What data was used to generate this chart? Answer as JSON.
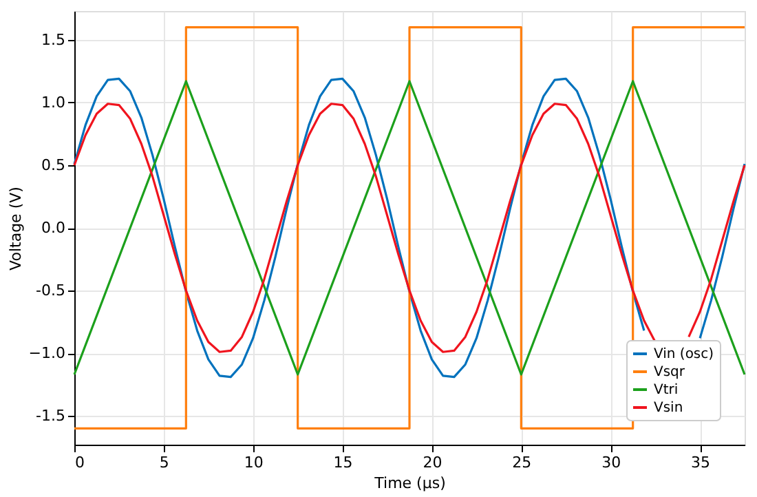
{
  "chart_data": {
    "type": "line",
    "xlabel": "Time (μs)",
    "ylabel": "Voltage (V)",
    "xlim": [
      0,
      37.5
    ],
    "ylim": [
      -1.73,
      1.73
    ],
    "xticks": [
      0,
      5,
      10,
      15,
      20,
      25,
      30,
      35
    ],
    "yticks": [
      -1.5,
      {
        "value": -1,
        "label": "−1.0"
      },
      -0.5,
      {
        "value": 0,
        "label": "0.0"
      },
      0.5,
      {
        "value": 1,
        "label": "1.0"
      },
      1.5
    ],
    "grid": true,
    "legend": "bottom right",
    "x": [
      0,
      0.625,
      1.25,
      1.875,
      2.5,
      3.125,
      3.75,
      4.375,
      5,
      5.625,
      6.25,
      6.875,
      7.5,
      8.125,
      8.75,
      9.375,
      10,
      10.625,
      11.25,
      11.875,
      12.5,
      13.125,
      13.75,
      14.375,
      15,
      15.625,
      16.25,
      16.875,
      17.5,
      18.125,
      18.75,
      19.375,
      20,
      20.625,
      21.25,
      21.875,
      22.5,
      23.125,
      23.75,
      24.375,
      25,
      25.625,
      26.25,
      26.875,
      27.5,
      28.125,
      28.75,
      29.375,
      30,
      30.625,
      31.25,
      31.875,
      32.5,
      33.125,
      33.75,
      34.375,
      35,
      35.625,
      36.25,
      36.875,
      37.5
    ],
    "series": [
      {
        "name": "Vin (osc)",
        "color": "#0072bd",
        "values": [
          0.51,
          0.82,
          1.05,
          1.18,
          1.19,
          1.09,
          0.88,
          0.58,
          0.23,
          -0.15,
          -0.51,
          -0.82,
          -1.05,
          -1.18,
          -1.19,
          -1.09,
          -0.88,
          -0.58,
          -0.23,
          0.15,
          0.51,
          0.82,
          1.05,
          1.18,
          1.19,
          1.09,
          0.88,
          0.58,
          0.23,
          -0.15,
          -0.51,
          -0.82,
          -1.05,
          -1.18,
          -1.19,
          -1.09,
          -0.88,
          -0.58,
          -0.23,
          0.15,
          0.51,
          0.82,
          1.05,
          1.18,
          1.19,
          1.09,
          0.88,
          0.58,
          0.23,
          -0.15,
          -0.51,
          -0.82,
          null,
          null,
          null,
          null,
          -0.88,
          -0.58,
          -0.23,
          0.15,
          0.51
        ]
      },
      {
        "name": "Vsqr",
        "type": "step",
        "color": "#ff7f0e",
        "x": [
          0,
          6.25,
          12.5,
          18.75,
          25,
          31.25,
          37.5
        ],
        "values": [
          -1.6,
          1.6,
          -1.6,
          1.6,
          -1.6,
          1.6,
          1.6
        ]
      },
      {
        "name": "Vtri",
        "color": "#1ca01c",
        "x": [
          0,
          6.25,
          12.5,
          18.75,
          25,
          31.25,
          37.5
        ],
        "values": [
          -1.17,
          1.17,
          -1.17,
          1.17,
          -1.17,
          1.17,
          -1.17
        ]
      },
      {
        "name": "Vsin",
        "color": "#f0141e",
        "values": [
          0.5,
          0.74,
          0.91,
          0.99,
          0.98,
          0.87,
          0.67,
          0.41,
          0.1,
          -0.21,
          -0.5,
          -0.74,
          -0.91,
          -0.99,
          -0.98,
          -0.87,
          -0.67,
          -0.41,
          -0.1,
          0.21,
          0.5,
          0.74,
          0.91,
          0.99,
          0.98,
          0.87,
          0.67,
          0.41,
          0.1,
          -0.21,
          -0.5,
          -0.74,
          -0.91,
          -0.99,
          -0.98,
          -0.87,
          -0.67,
          -0.41,
          -0.1,
          0.21,
          0.5,
          0.74,
          0.91,
          0.99,
          0.98,
          0.87,
          0.67,
          0.41,
          0.1,
          -0.21,
          -0.5,
          -0.74,
          -0.91,
          null,
          null,
          -0.87,
          -0.67,
          -0.41,
          -0.1,
          0.21,
          0.5
        ]
      }
    ]
  }
}
